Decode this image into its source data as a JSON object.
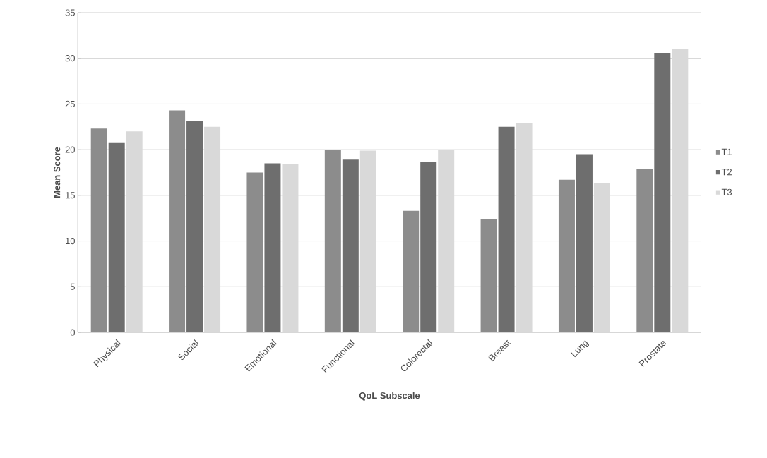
{
  "chart_data": {
    "type": "bar",
    "xlabel": "QoL Subscale",
    "ylabel": "Mean Score",
    "categories": [
      "Physical",
      "Social",
      "Emotional",
      "Functional",
      "Colorectal",
      "Breast",
      "Lung",
      "Prostate"
    ],
    "series": [
      {
        "name": "T1",
        "color": "#8c8c8c",
        "values": [
          22.3,
          24.3,
          17.5,
          20.0,
          13.3,
          12.4,
          16.7,
          17.9
        ]
      },
      {
        "name": "T2",
        "color": "#6e6e6e",
        "values": [
          20.8,
          23.1,
          18.5,
          18.9,
          18.7,
          22.5,
          19.5,
          30.6
        ]
      },
      {
        "name": "T3",
        "color": "#d9d9d9",
        "values": [
          22.0,
          22.5,
          18.4,
          19.9,
          20.0,
          22.9,
          16.3,
          31.0
        ]
      }
    ],
    "ylim": [
      0,
      35
    ],
    "yticks": [
      0,
      5,
      10,
      15,
      20,
      25,
      30,
      35
    ],
    "grid": "y",
    "legend": "right"
  }
}
